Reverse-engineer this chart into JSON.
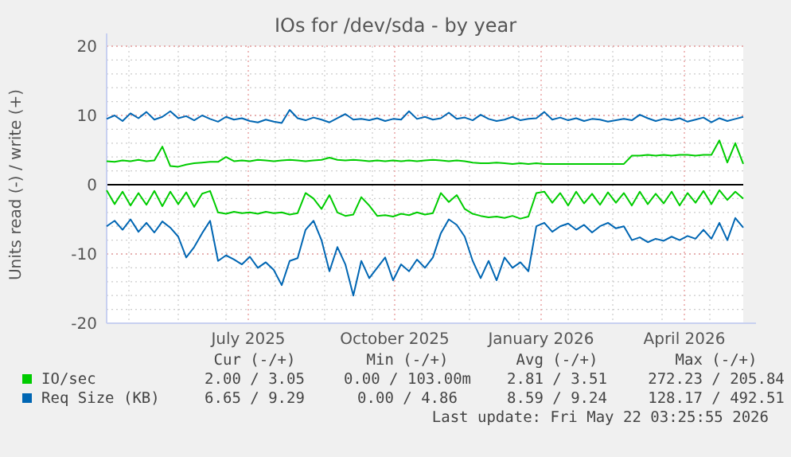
{
  "chart_data": {
    "type": "line",
    "title": "IOs for /dev/sda - by year",
    "ylabel": "Units read (-) / write (+)",
    "xlim": [
      "2025-04-17",
      "2026-05-22"
    ],
    "xticks": [
      {
        "value": "2025-07-15",
        "label": "July 2025"
      },
      {
        "value": "2025-10-15",
        "label": "October 2025"
      },
      {
        "value": "2026-01-15",
        "label": "January 2026"
      },
      {
        "value": "2026-04-15",
        "label": "April 2026"
      }
    ],
    "ylim": [
      -20,
      20
    ],
    "yticks": [
      -20,
      -10,
      0,
      10,
      20
    ],
    "grid": true,
    "legend": "bottom",
    "x": [
      "2025-04-17",
      "2025-04-22",
      "2025-04-27",
      "2025-05-02",
      "2025-05-07",
      "2025-05-12",
      "2025-05-17",
      "2025-05-22",
      "2025-05-27",
      "2025-06-01",
      "2025-06-06",
      "2025-06-11",
      "2025-06-16",
      "2025-06-21",
      "2025-06-26",
      "2025-07-01",
      "2025-07-06",
      "2025-07-11",
      "2025-07-16",
      "2025-07-21",
      "2025-07-26",
      "2025-07-31",
      "2025-08-05",
      "2025-08-10",
      "2025-08-15",
      "2025-08-20",
      "2025-08-25",
      "2025-08-30",
      "2025-09-04",
      "2025-09-09",
      "2025-09-14",
      "2025-09-19",
      "2025-09-24",
      "2025-09-29",
      "2025-10-04",
      "2025-10-09",
      "2025-10-14",
      "2025-10-19",
      "2025-10-24",
      "2025-10-29",
      "2025-11-03",
      "2025-11-08",
      "2025-11-13",
      "2025-11-18",
      "2025-11-23",
      "2025-11-28",
      "2025-12-03",
      "2025-12-08",
      "2025-12-13",
      "2025-12-18",
      "2025-12-23",
      "2025-12-28",
      "2026-01-02",
      "2026-01-07",
      "2026-01-12",
      "2026-01-17",
      "2026-01-22",
      "2026-01-27",
      "2026-02-01",
      "2026-02-06",
      "2026-02-11",
      "2026-02-16",
      "2026-02-21",
      "2026-02-26",
      "2026-03-03",
      "2026-03-08",
      "2026-03-13",
      "2026-03-18",
      "2026-03-23",
      "2026-03-28",
      "2026-04-02",
      "2026-04-07",
      "2026-04-12",
      "2026-04-17",
      "2026-04-22",
      "2026-04-27",
      "2026-05-02",
      "2026-05-07",
      "2026-05-12",
      "2026-05-17",
      "2026-05-22"
    ],
    "series": [
      {
        "name": "IO/sec",
        "color": "#00cc00",
        "values": [
          3.4,
          3.3,
          3.5,
          3.4,
          3.6,
          3.4,
          3.5,
          5.5,
          2.7,
          2.6,
          2.9,
          3.1,
          3.2,
          3.3,
          3.3,
          4.0,
          3.4,
          3.5,
          3.4,
          3.6,
          3.5,
          3.4,
          3.5,
          3.6,
          3.5,
          3.4,
          3.5,
          3.6,
          3.9,
          3.6,
          3.5,
          3.6,
          3.5,
          3.4,
          3.5,
          3.4,
          3.5,
          3.4,
          3.5,
          3.4,
          3.5,
          3.6,
          3.5,
          3.4,
          3.5,
          3.4,
          3.2,
          3.1,
          3.1,
          3.2,
          3.1,
          3.0,
          3.1,
          3.0,
          3.1,
          3.0,
          3.0,
          3.0,
          3.0,
          3.0,
          3.0,
          3.0,
          3.0,
          3.0,
          3.0,
          3.0,
          4.2,
          4.2,
          4.3,
          4.2,
          4.3,
          4.2,
          4.3,
          4.3,
          4.2,
          4.3,
          4.3,
          6.4,
          3.2,
          6.0,
          3.0
        ]
      },
      {
        "color": "#00cc00",
        "values": [
          -0.8,
          -2.8,
          -1.0,
          -3.0,
          -1.2,
          -2.9,
          -0.9,
          -3.1,
          -1.0,
          -2.8,
          -1.1,
          -3.2,
          -1.3,
          -0.9,
          -4.0,
          -4.2,
          -3.9,
          -4.1,
          -4.0,
          -4.2,
          -3.9,
          -4.1,
          -4.0,
          -4.3,
          -4.1,
          -1.2,
          -2.0,
          -3.5,
          -1.5,
          -4.0,
          -4.5,
          -4.3,
          -1.8,
          -3.0,
          -4.5,
          -4.4,
          -4.6,
          -4.2,
          -4.4,
          -4.0,
          -4.3,
          -4.1,
          -1.2,
          -2.5,
          -1.5,
          -3.5,
          -4.2,
          -4.5,
          -4.7,
          -4.6,
          -4.8,
          -4.5,
          -4.9,
          -4.6,
          -1.2,
          -1.0,
          -2.6,
          -1.2,
          -3.0,
          -1.0,
          -2.7,
          -1.3,
          -2.9,
          -1.1,
          -2.6,
          -1.2,
          -3.0,
          -1.0,
          -2.8,
          -1.3,
          -2.7,
          -1.0,
          -3.0,
          -1.2,
          -2.6,
          -0.9,
          -2.8,
          -0.8,
          -2.2,
          -1.0,
          -2.0
        ]
      },
      {
        "name": "Req Size (KB)",
        "color": "#0066b3",
        "values": [
          9.5,
          10.0,
          9.2,
          10.3,
          9.6,
          10.5,
          9.4,
          9.8,
          10.6,
          9.6,
          9.9,
          9.3,
          10.0,
          9.5,
          9.1,
          9.8,
          9.4,
          9.6,
          9.2,
          9.0,
          9.4,
          9.1,
          8.9,
          10.8,
          9.6,
          9.3,
          9.7,
          9.4,
          9.0,
          9.6,
          10.2,
          9.4,
          9.5,
          9.3,
          9.6,
          9.2,
          9.5,
          9.4,
          10.6,
          9.5,
          9.8,
          9.4,
          9.6,
          10.4,
          9.5,
          9.7,
          9.3,
          10.1,
          9.5,
          9.2,
          9.4,
          9.8,
          9.3,
          9.5,
          9.6,
          10.5,
          9.4,
          9.7,
          9.3,
          9.6,
          9.2,
          9.5,
          9.4,
          9.1,
          9.3,
          9.5,
          9.3,
          10.1,
          9.6,
          9.2,
          9.5,
          9.3,
          9.6,
          9.1,
          9.4,
          9.7,
          9.0,
          9.6,
          9.2,
          9.5,
          9.8
        ]
      },
      {
        "color": "#0066b3",
        "values": [
          -6.0,
          -5.2,
          -6.5,
          -5.0,
          -6.8,
          -5.5,
          -6.9,
          -5.3,
          -6.2,
          -7.5,
          -10.5,
          -9.0,
          -7.0,
          -5.2,
          -11.0,
          -10.2,
          -10.8,
          -11.5,
          -10.4,
          -12.0,
          -11.2,
          -12.3,
          -14.5,
          -11.0,
          -10.6,
          -6.5,
          -5.2,
          -8.0,
          -12.5,
          -9.0,
          -11.5,
          -16.0,
          -11.0,
          -13.5,
          -12.0,
          -10.5,
          -13.8,
          -11.5,
          -12.5,
          -10.8,
          -12.0,
          -10.5,
          -7.0,
          -5.0,
          -5.8,
          -7.5,
          -11.0,
          -13.5,
          -11.0,
          -13.8,
          -10.5,
          -12.0,
          -11.2,
          -12.5,
          -6.0,
          -5.5,
          -6.8,
          -6.0,
          -5.6,
          -6.5,
          -5.8,
          -6.9,
          -6.0,
          -5.5,
          -6.3,
          -6.0,
          -8.0,
          -7.6,
          -8.3,
          -7.8,
          -8.1,
          -7.5,
          -8.0,
          -7.4,
          -7.8,
          -6.5,
          -7.8,
          -5.5,
          -8.0,
          -4.8,
          -6.2
        ]
      }
    ],
    "annotations": [
      "Cur (-/+)",
      "Min (-/+)",
      "Avg (-/+)",
      "Max (-/+)",
      "2.00 / 3.05",
      "0.00 / 103.00m",
      "2.81 / 3.51",
      "272.23 / 205.84",
      "6.65 / 9.29",
      "0.00 / 4.86",
      "8.59 / 9.24",
      "128.17 / 492.51",
      "Last update: Fri May 22 03:25:55 2026"
    ]
  }
}
